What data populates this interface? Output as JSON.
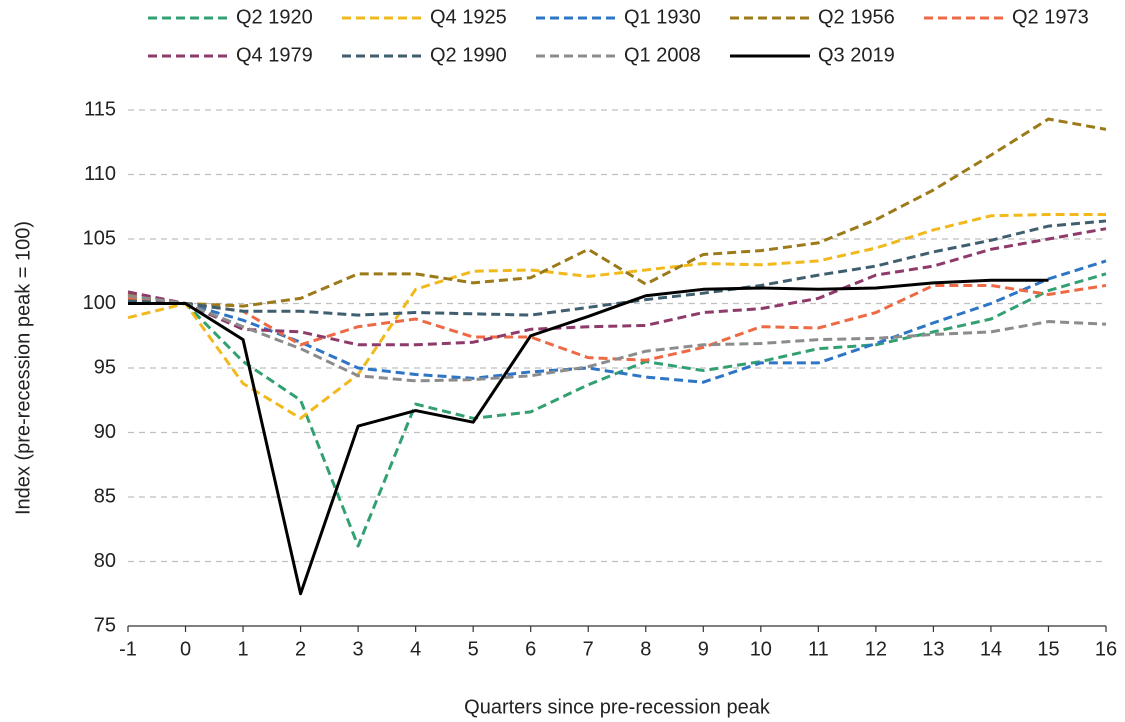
{
  "chart_data": {
    "type": "line",
    "x_label": "Quarters since pre-recession peak",
    "y_label": "Index (pre-recession peak = 100)",
    "x": [
      -1,
      0,
      1,
      2,
      3,
      4,
      5,
      6,
      7,
      8,
      9,
      10,
      11,
      12,
      13,
      14,
      15,
      16
    ],
    "xlim": [
      -1,
      16
    ],
    "xticks": [
      -1,
      0,
      1,
      2,
      3,
      4,
      5,
      6,
      7,
      8,
      9,
      10,
      11,
      12,
      13,
      14,
      15,
      16
    ],
    "ylim": [
      75,
      115
    ],
    "yticks": [
      75,
      80,
      85,
      90,
      95,
      100,
      105,
      110,
      115
    ],
    "grid": true,
    "legend": "top",
    "series": [
      {
        "name": "Q2 1920",
        "color": "#32a071",
        "style": "dashed",
        "values": [
          100.5,
          100,
          95.5,
          92.5,
          81.2,
          92.2,
          91.1,
          91.6,
          93.7,
          95.5,
          94.8,
          95.5,
          96.5,
          96.8,
          97.8,
          98.8,
          101,
          102.3
        ]
      },
      {
        "name": "Q4 1925",
        "color": "#f2b91c",
        "style": "dashed",
        "values": [
          98.9,
          100,
          93.8,
          91.1,
          94.5,
          101.1,
          102.5,
          102.6,
          102.1,
          102.6,
          103.1,
          103.0,
          103.3,
          104.3,
          105.7,
          106.8,
          106.9,
          106.9
        ]
      },
      {
        "name": "Q1 1930",
        "color": "#2e75c6",
        "style": "dashed",
        "values": [
          100.3,
          100,
          98.7,
          97.0,
          95.0,
          94.5,
          94.2,
          94.7,
          95.0,
          94.3,
          93.9,
          95.4,
          95.4,
          96.9,
          98.5,
          100,
          101.9,
          103.3
        ]
      },
      {
        "name": "Q2 1956",
        "color": "#9c7a1a",
        "style": "dashed",
        "values": [
          100.7,
          100,
          99.8,
          100.4,
          102.3,
          102.3,
          101.6,
          102.0,
          104.2,
          101.5,
          103.8,
          104.1,
          104.7,
          106.5,
          108.8,
          111.5,
          114.3,
          113.5
        ]
      },
      {
        "name": "Q2 1973",
        "color": "#ed6a44",
        "style": "dashed",
        "values": [
          100.4,
          100,
          99.4,
          96.8,
          98.2,
          98.8,
          97.4,
          97.4,
          95.8,
          95.6,
          96.6,
          98.2,
          98.1,
          99.3,
          101.4,
          101.4,
          100.7,
          101.4
        ]
      },
      {
        "name": "Q4 1979",
        "color": "#8e3a6a",
        "style": "dashed",
        "values": [
          100.9,
          100,
          98.0,
          97.8,
          96.8,
          96.8,
          97.0,
          98.0,
          98.2,
          98.3,
          99.3,
          99.6,
          100.4,
          102.2,
          102.9,
          104.2,
          105.0,
          105.8
        ]
      },
      {
        "name": "Q2 1990",
        "color": "#3f5f70",
        "style": "dashed",
        "values": [
          100.2,
          100,
          99.4,
          99.4,
          99.1,
          99.3,
          99.2,
          99.1,
          99.7,
          100.3,
          100.8,
          101.4,
          102.2,
          102.9,
          104.0,
          104.9,
          106.0,
          106.4
        ]
      },
      {
        "name": "Q1 2008",
        "color": "#8c8c8c",
        "style": "dashed",
        "values": [
          100.6,
          100,
          98.2,
          96.5,
          94.4,
          94.0,
          94.1,
          94.4,
          95.1,
          96.3,
          96.8,
          96.9,
          97.2,
          97.3,
          97.6,
          97.8,
          98.6,
          98.4
        ]
      },
      {
        "name": "Q3 2019",
        "color": "#000000",
        "style": "solid",
        "values": [
          100,
          100,
          97.2,
          77.5,
          90.5,
          91.7,
          90.8,
          97.5,
          99.0,
          100.6,
          101.1,
          101.2,
          101.1,
          101.2,
          101.6,
          101.8,
          101.8,
          null
        ]
      }
    ]
  }
}
